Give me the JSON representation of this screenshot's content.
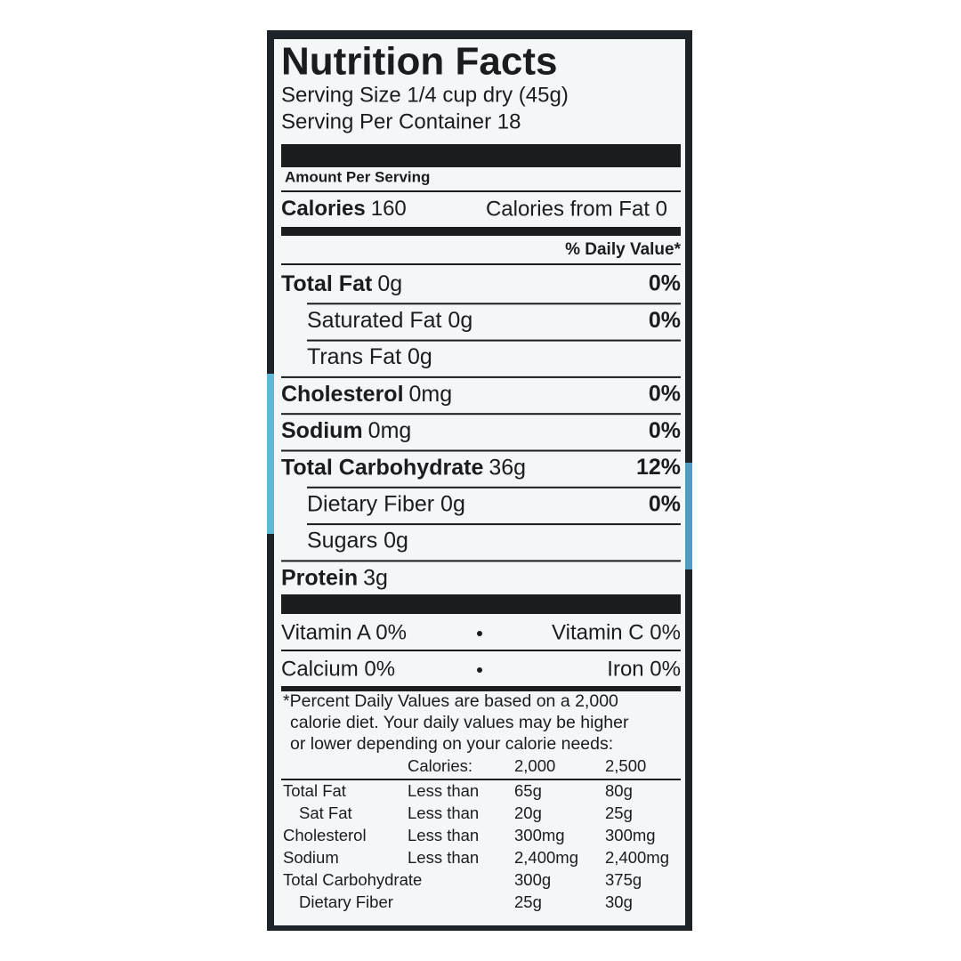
{
  "header": {
    "title": "Nutrition Facts"
  },
  "serving": {
    "size": "Serving Size 1/4 cup dry (45g)",
    "per_container": "Serving Per Container 18"
  },
  "amount_per_serving": "Amount Per Serving",
  "calories": {
    "label": "Calories",
    "value": "160",
    "from_fat": "Calories from Fat 0"
  },
  "dv_header": "% Daily Value*",
  "nutrients": [
    {
      "name": "Total Fat",
      "amount": "0g",
      "dv": "0%",
      "sub": [
        {
          "name": "Saturated Fat 0g",
          "dv": "0%"
        },
        {
          "name": "Trans Fat 0g"
        }
      ]
    },
    {
      "name": "Cholesterol",
      "amount": "0mg",
      "dv": "0%"
    },
    {
      "name": "Sodium",
      "amount": "0mg",
      "dv": "0%"
    },
    {
      "name": "Total Carbohydrate",
      "amount": "36g",
      "dv": "12%",
      "sub": [
        {
          "name": "Dietary Fiber 0g",
          "dv": "0%"
        },
        {
          "name": "Sugars 0g"
        }
      ]
    },
    {
      "name": "Protein",
      "amount": "3g"
    }
  ],
  "vitamins": [
    [
      "Vitamin A 0%",
      "Vitamin C 0%"
    ],
    [
      "Calcium 0%",
      "Iron 0%"
    ]
  ],
  "footnote": [
    "*Percent Daily Values are based on a 2,000",
    "calorie diet. Your daily values may be higher",
    "or lower depending on your calorie needs:"
  ],
  "dv_table": {
    "header": [
      "Calories:",
      "2,000",
      "2,500"
    ],
    "rows": [
      {
        "nutrient": "Total Fat",
        "qualifier": "Less than",
        "values": [
          "65g",
          "80g"
        ],
        "sub": {
          "nutrient": "Sat Fat",
          "qualifier": "Less than",
          "values": [
            "20g",
            "25g"
          ]
        }
      },
      {
        "nutrient": "Cholesterol",
        "qualifier": "Less than",
        "values": [
          "300mg",
          "300mg"
        ]
      },
      {
        "nutrient": "Sodium",
        "qualifier": "Less than",
        "values": [
          "2,400mg",
          "2,400mg"
        ]
      },
      {
        "nutrient": "Total Carbohydrate",
        "values": [
          "300g",
          "375g"
        ],
        "sub": {
          "nutrient": "Dietary Fiber",
          "values": [
            "25g",
            "30g"
          ]
        }
      }
    ]
  }
}
